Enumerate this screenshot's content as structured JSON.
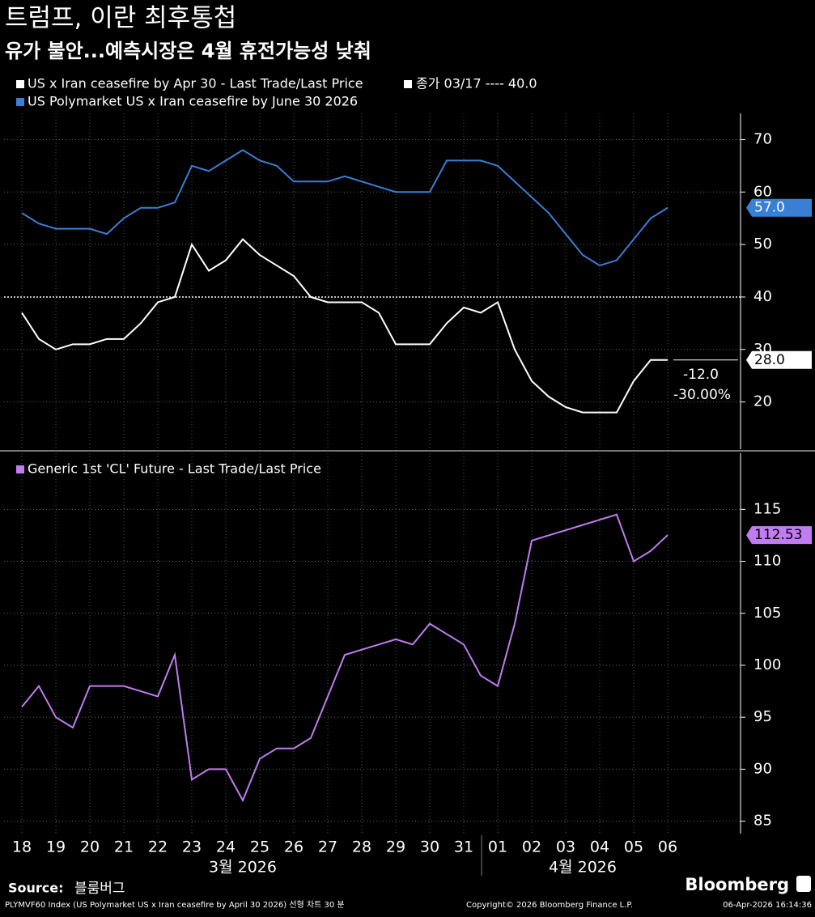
{
  "header": {
    "title": "트럼프, 이란 최후통첩",
    "subtitle": "유가 불안...예측시장은 4월 휴전가능성 낮춰"
  },
  "chart_data": [
    {
      "type": "line",
      "categories": [
        "18",
        null,
        "19",
        null,
        "20",
        null,
        "21",
        null,
        "22",
        null,
        "23",
        null,
        "24",
        null,
        "25",
        null,
        "26",
        null,
        "27",
        null,
        "28",
        null,
        "29",
        null,
        "30",
        null,
        "31",
        null,
        "01",
        null,
        "02",
        null,
        "03",
        null,
        "04",
        null,
        "05",
        null,
        "06"
      ],
      "series": [
        {
          "name": "US x Iran ceasefire by Apr 30 - Last Trade/Last Price",
          "color": "#ffffff",
          "values": [
            37,
            32,
            30,
            31,
            31,
            32,
            32,
            35,
            39,
            40,
            50,
            45,
            47,
            51,
            48,
            46,
            44,
            40,
            39,
            39,
            39,
            37,
            31,
            31,
            31,
            35,
            38,
            37,
            39,
            30,
            24,
            21,
            19,
            18,
            18,
            18,
            24,
            28,
            28
          ],
          "value_labels": [
            null,
            null,
            null,
            null,
            null,
            null,
            null,
            null,
            null,
            null,
            null,
            null,
            null,
            null,
            null,
            null,
            null,
            null,
            null,
            null,
            null,
            null,
            null,
            null,
            null,
            null,
            null,
            null,
            null,
            null,
            null,
            null,
            null,
            null,
            null,
            null,
            null,
            null,
            "28.0"
          ]
        },
        {
          "name": "US Polymarket US x Iran ceasefire by June 30 2026",
          "color": "#3a7fd5",
          "values": [
            56,
            54,
            53,
            53,
            53,
            52,
            55,
            57,
            57,
            58,
            65,
            64,
            66,
            68,
            66,
            65,
            62,
            62,
            62,
            63,
            62,
            61,
            60,
            60,
            60,
            66,
            66,
            66,
            65,
            62,
            59,
            56,
            52,
            48,
            46,
            47,
            51,
            55,
            57
          ],
          "value_labels": [
            null,
            null,
            null,
            null,
            null,
            null,
            null,
            null,
            null,
            null,
            null,
            null,
            null,
            null,
            null,
            null,
            null,
            null,
            null,
            null,
            null,
            null,
            null,
            null,
            null,
            null,
            null,
            null,
            null,
            null,
            null,
            null,
            null,
            null,
            null,
            null,
            null,
            null,
            "57.0"
          ]
        }
      ],
      "reference": {
        "label": "종가 03/17 ---- 40.0",
        "value": 40,
        "color": "#ffffff"
      },
      "annotations": [
        "-12.0",
        "-30.00%"
      ],
      "ylim": [
        11,
        75
      ],
      "yticks": [
        20,
        30,
        40,
        50,
        60,
        70
      ],
      "grid": true
    },
    {
      "type": "line",
      "categories": [
        "18",
        null,
        "19",
        null,
        "20",
        null,
        "21",
        null,
        "22",
        null,
        "23",
        null,
        "24",
        null,
        "25",
        null,
        "26",
        null,
        "27",
        null,
        "28",
        null,
        "29",
        null,
        "30",
        null,
        "31",
        null,
        "01",
        null,
        "02",
        null,
        "03",
        null,
        "04",
        null,
        "05",
        null,
        "06"
      ],
      "x_groups": [
        "3월 2026",
        "4월 2026"
      ],
      "series": [
        {
          "name": "Generic 1st 'CL' Future - Last Trade/Last Price",
          "color": "#c07cf0",
          "values": [
            96,
            98,
            95,
            94,
            98,
            98,
            98,
            97.5,
            97,
            101,
            89,
            90,
            90,
            87,
            91,
            92,
            92,
            93,
            97,
            101,
            101.5,
            102,
            102.5,
            102,
            104,
            103,
            102,
            99,
            98,
            104,
            112,
            112.5,
            113,
            113.5,
            114,
            114.5,
            110,
            111,
            112.53
          ]
        }
      ],
      "ylim": [
        83.8,
        120.4
      ],
      "yticks": [
        85,
        90,
        95,
        100,
        105,
        110,
        115
      ],
      "grid": true
    }
  ],
  "footer": {
    "source_label": "Source:",
    "source": "블룸버그",
    "brand": "Bloomberg",
    "description": "PLYMVF60 Index (US Polymarket US x Iran ceasefire by April 30 2026) 선형 차트 30 분",
    "copyright": "Copyright© 2026 Bloomberg Finance L.P.",
    "timestamp": "06-Apr-2026 16:14:36"
  }
}
